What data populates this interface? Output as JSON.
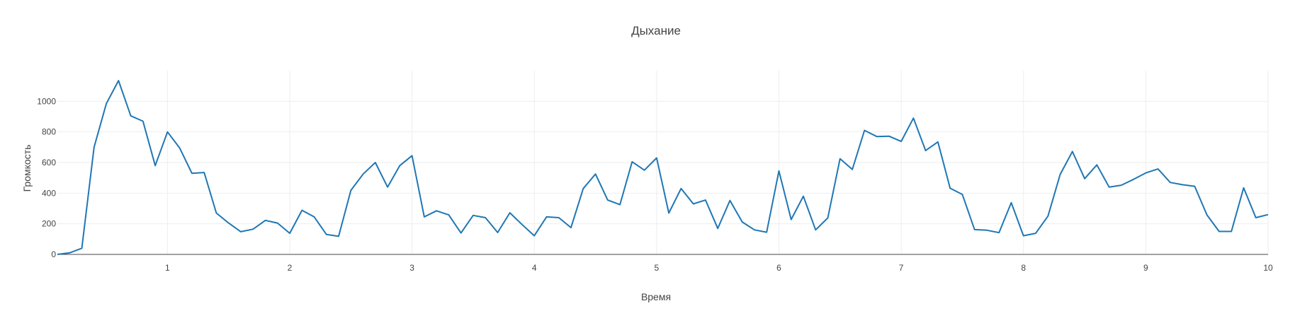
{
  "chart_data": {
    "type": "line",
    "title": "Дыхание",
    "xlabel": "Время",
    "ylabel": "Громкость",
    "xlim": [
      0.1,
      10
    ],
    "ylim": [
      0,
      1200
    ],
    "x_ticks": [
      1,
      2,
      3,
      4,
      5,
      6,
      7,
      8,
      9,
      10
    ],
    "y_ticks": [
      0,
      200,
      400,
      600,
      800,
      1000
    ],
    "grid": true,
    "legend": "none",
    "colors": {
      "line": "#1f77b4",
      "grid": "#eeeeee",
      "axis": "#444444",
      "text": "#444444"
    },
    "series": [
      {
        "x": [
          0.1,
          0.2,
          0.3,
          0.4,
          0.5,
          0.6,
          0.7,
          0.8,
          0.9,
          1.0,
          1.1,
          1.2,
          1.3,
          1.4,
          1.5,
          1.6,
          1.7,
          1.8,
          1.9,
          2.0,
          2.1,
          2.2,
          2.3,
          2.4,
          2.5,
          2.6,
          2.7,
          2.8,
          2.9,
          3.0,
          3.1,
          3.2,
          3.3,
          3.4,
          3.5,
          3.6,
          3.7,
          3.8,
          3.9,
          4.0,
          4.1,
          4.2,
          4.3,
          4.4,
          4.5,
          4.6,
          4.7,
          4.8,
          4.9,
          5.0,
          5.1,
          5.2,
          5.3,
          5.4,
          5.5,
          5.6,
          5.7,
          5.8,
          5.9,
          6.0,
          6.1,
          6.2,
          6.3,
          6.4,
          6.5,
          6.6,
          6.7,
          6.8,
          6.9,
          7.0,
          7.1,
          7.2,
          7.3,
          7.4,
          7.5,
          7.6,
          7.7,
          7.8,
          7.9,
          8.0,
          8.1,
          8.2,
          8.3,
          8.4,
          8.5,
          8.6,
          8.7,
          8.8,
          8.9,
          9.0,
          9.1,
          9.2,
          9.3,
          9.4,
          9.5,
          9.6,
          9.7,
          9.8,
          9.9,
          10.0
        ],
        "y": [
          0,
          10,
          40,
          700,
          985,
          1135,
          905,
          870,
          580,
          800,
          695,
          530,
          535,
          270,
          205,
          148,
          165,
          222,
          205,
          138,
          288,
          245,
          130,
          118,
          418,
          525,
          600,
          440,
          580,
          645,
          245,
          285,
          258,
          140,
          255,
          240,
          143,
          272,
          195,
          122,
          245,
          240,
          175,
          430,
          525,
          355,
          325,
          605,
          550,
          630,
          270,
          430,
          330,
          355,
          170,
          352,
          212,
          160,
          145,
          545,
          228,
          380,
          160,
          238,
          625,
          555,
          810,
          770,
          772,
          738,
          890,
          678,
          735,
          432,
          392,
          162,
          158,
          142,
          338,
          122,
          138,
          250,
          522,
          672,
          495,
          585,
          440,
          452,
          490,
          532,
          558,
          470,
          455,
          445,
          258,
          150,
          150,
          435,
          240,
          260
        ]
      }
    ]
  }
}
